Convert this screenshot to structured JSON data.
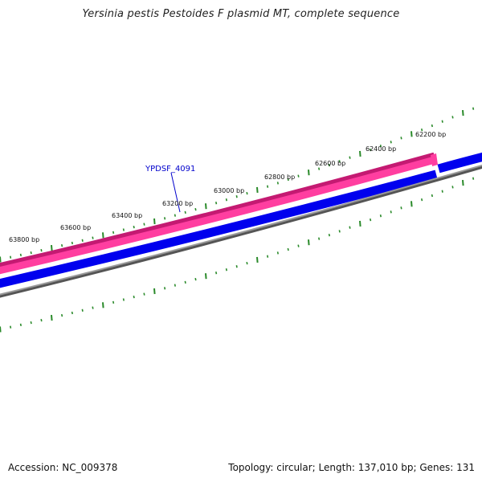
{
  "title": "Yersinia pestis Pestoides F plasmid MT, complete sequence",
  "footer": {
    "accession": "Accession: NC_009378",
    "summary": "Topology: circular; Length: 137,010 bp; Genes: 131"
  },
  "ruler_labels": [
    "62200 bp",
    "62400 bp",
    "62600 bp",
    "62800 bp",
    "63000 bp",
    "63200 bp",
    "63400 bp",
    "63600 bp",
    "63800 bp"
  ],
  "gene_label": "YPDSF_4091",
  "colors": {
    "ticks": "#2a8a2a",
    "pink_feature": "#ff3ea0",
    "blue_feature": "#0000ee",
    "backbone": "#8a8a8a",
    "gene_label": "#0000cc"
  }
}
